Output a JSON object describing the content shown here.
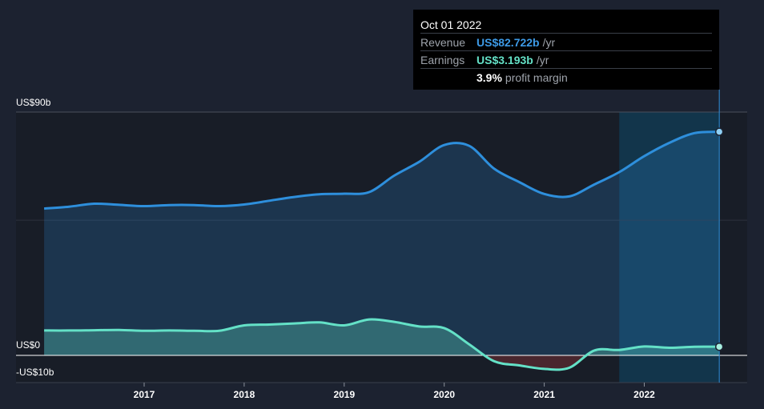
{
  "chart_data": {
    "type": "area",
    "x": [
      2016.0,
      2016.25,
      2016.5,
      2016.75,
      2017.0,
      2017.25,
      2017.5,
      2017.75,
      2018.0,
      2018.25,
      2018.5,
      2018.75,
      2019.0,
      2019.25,
      2019.5,
      2019.75,
      2020.0,
      2020.25,
      2020.5,
      2020.75,
      2021.0,
      2021.25,
      2021.5,
      2021.75,
      2022.0,
      2022.25,
      2022.5,
      2022.75
    ],
    "series": [
      {
        "name": "Revenue",
        "color": "#2e8fdc",
        "values": [
          54.3,
          55.0,
          56.1,
          55.7,
          55.2,
          55.6,
          55.6,
          55.2,
          55.8,
          57.2,
          58.6,
          59.6,
          59.8,
          60.4,
          66.5,
          71.6,
          77.8,
          77.5,
          69.0,
          64.1,
          59.7,
          58.8,
          63.2,
          67.8,
          73.7,
          78.6,
          82.2,
          82.7
        ]
      },
      {
        "name": "Earnings",
        "color": "#64e1c7",
        "values": [
          9.2,
          9.2,
          9.3,
          9.4,
          9.1,
          9.2,
          9.1,
          9.1,
          11.1,
          11.4,
          11.8,
          12.2,
          11.1,
          13.3,
          12.4,
          10.7,
          10.1,
          4.1,
          -2.2,
          -3.7,
          -5.0,
          -4.6,
          1.8,
          2.0,
          3.3,
          2.8,
          3.2,
          3.2
        ]
      }
    ],
    "ylim": [
      -10,
      90
    ],
    "ytick_labels": [
      "US$90b",
      "US$0",
      "-US$10b"
    ],
    "xtick_values": [
      2017,
      2018,
      2019,
      2020,
      2021,
      2022
    ],
    "xtick_labels": [
      "2017",
      "2018",
      "2019",
      "2020",
      "2021",
      "2022"
    ],
    "highlight_range": [
      2021.75,
      2022.75
    ],
    "grid": true,
    "xlabel": "",
    "ylabel": ""
  },
  "tooltip": {
    "date": "Oct 01 2022",
    "revenue_label": "Revenue",
    "revenue_value": "US$82.722b",
    "revenue_unit": "/yr",
    "earnings_label": "Earnings",
    "earnings_value": "US$3.193b",
    "earnings_unit": "/yr",
    "margin_value": "3.9%",
    "margin_label": "profit margin"
  },
  "colors": {
    "background": "#1c2230",
    "revenue": "#2e8fdc",
    "earnings": "#64e1c7",
    "loss_fill": "#5a2a32",
    "highlight_fill": "#123a52"
  }
}
